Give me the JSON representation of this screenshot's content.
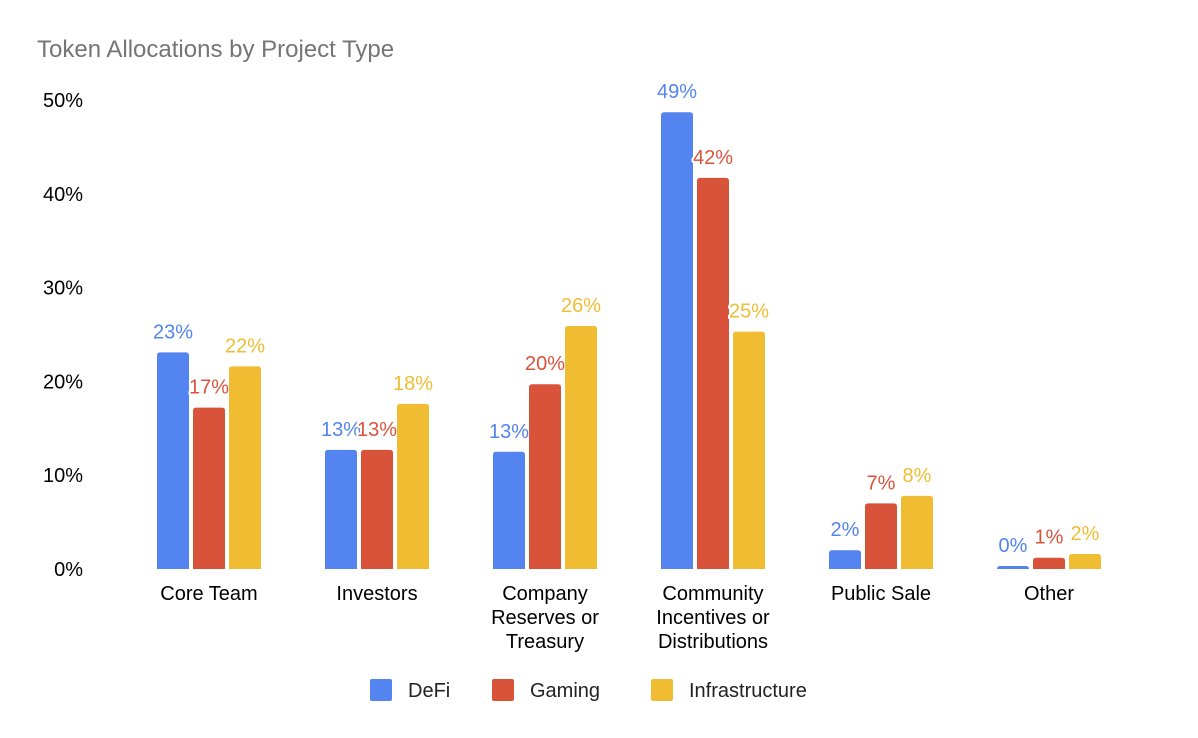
{
  "chart_data": {
    "type": "bar",
    "title": "Token Allocations by Project Type",
    "xlabel": "",
    "ylabel": "",
    "ylim": [
      0,
      50
    ],
    "yticks": [
      "0%",
      "10%",
      "20%",
      "30%",
      "40%",
      "50%"
    ],
    "grid": false,
    "legend_position": "bottom",
    "categories": [
      [
        "Core Team"
      ],
      [
        "Investors"
      ],
      [
        "Company",
        "Reserves or",
        "Treasury"
      ],
      [
        "Community",
        "Incentives or",
        "Distributions"
      ],
      [
        "Public Sale"
      ],
      [
        "Other"
      ]
    ],
    "series": [
      {
        "name": "DeFi",
        "color": "#5384EF",
        "values": [
          23.1,
          12.7,
          12.5,
          48.7,
          2.0,
          0.3
        ],
        "labels": [
          "23%",
          "13%",
          "13%",
          "49%",
          "2%",
          "0%"
        ]
      },
      {
        "name": "Gaming",
        "color": "#D9533B",
        "values": [
          17.2,
          12.7,
          19.7,
          41.7,
          7.0,
          1.2
        ],
        "labels": [
          "17%",
          "13%",
          "20%",
          "42%",
          "7%",
          "1%"
        ]
      },
      {
        "name": "Infrastructure",
        "color": "#F0BD32",
        "values": [
          21.6,
          17.6,
          25.9,
          25.3,
          7.8,
          1.6
        ],
        "labels": [
          "22%",
          "18%",
          "26%",
          "25%",
          "8%",
          "2%"
        ]
      }
    ]
  }
}
